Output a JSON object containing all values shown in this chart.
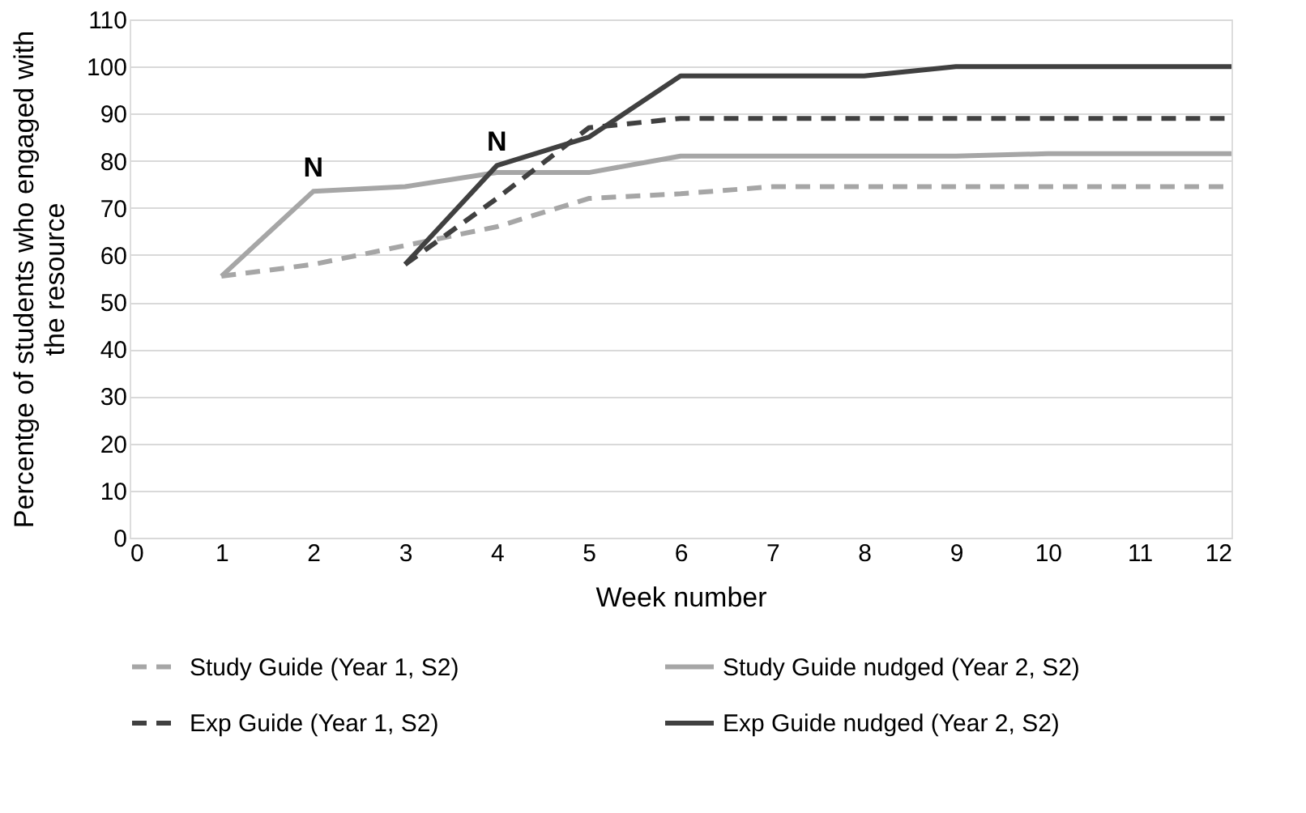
{
  "chart_data": {
    "type": "line",
    "xlabel": "Week number",
    "ylabel": "Percentge of students who engaged with the resource",
    "xlim": [
      0,
      12
    ],
    "xticks": [
      0,
      1,
      2,
      3,
      4,
      5,
      6,
      7,
      8,
      9,
      10,
      11,
      12
    ],
    "ylim": [
      0,
      110
    ],
    "yticks": [
      0,
      10,
      20,
      30,
      40,
      50,
      60,
      70,
      80,
      90,
      100,
      110
    ],
    "grid": "y",
    "legend": "bottom",
    "marker": "none",
    "series": [
      {
        "name": "Study Guide (Year 1, S2)",
        "color": "#a6a6a6",
        "line_style": "dashed",
        "x": [
          1,
          2,
          3,
          4,
          5,
          6,
          7,
          8,
          9,
          10,
          11,
          12
        ],
        "values": [
          55.5,
          58,
          62,
          66,
          72,
          73,
          74.5,
          74.5,
          74.5,
          74.5,
          74.5,
          74.5
        ]
      },
      {
        "name": "Study Guide nudged (Year 2, S2)",
        "color": "#a6a6a6",
        "line_style": "solid",
        "x": [
          1,
          2,
          3,
          4,
          5,
          6,
          7,
          8,
          9,
          10,
          11,
          12
        ],
        "values": [
          55.5,
          73.5,
          74.5,
          77.5,
          77.5,
          81,
          81,
          81,
          81,
          81.5,
          81.5,
          81.5
        ]
      },
      {
        "name": "Exp Guide (Year 1, S2)",
        "color": "#404040",
        "line_style": "dashed",
        "x": [
          3,
          4,
          5,
          6,
          7,
          8,
          9,
          10,
          11,
          12
        ],
        "values": [
          58,
          72,
          87,
          89,
          89,
          89,
          89,
          89,
          89,
          89
        ]
      },
      {
        "name": "Exp Guide nudged (Year 2, S2)",
        "color": "#404040",
        "line_style": "solid",
        "x": [
          3,
          4,
          5,
          6,
          7,
          8,
          9,
          10,
          11,
          12
        ],
        "values": [
          58,
          79,
          85,
          98,
          98,
          98,
          100,
          100,
          100,
          100
        ]
      }
    ],
    "annotations": [
      {
        "text": "N",
        "x": 2,
        "y": 73.5
      },
      {
        "text": "N",
        "x": 4,
        "y": 79
      }
    ]
  }
}
